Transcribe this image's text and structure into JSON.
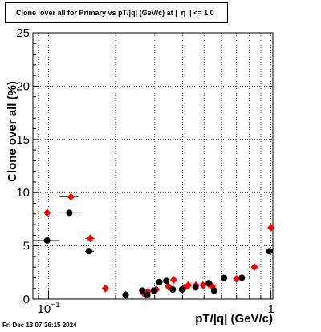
{
  "title": "Clone  over all for Primary vs pT/|q| (GeV/c) at |  η  | <= 1.0",
  "footer": "Fri Dec 13 07:36:15 2024",
  "chart_data": {
    "type": "scatter",
    "title": "Clone  over all for Primary vs pT/|q| (GeV/c) at |  η  | <= 1.0",
    "xlabel": "pT/|q| (GeV/c)",
    "ylabel": "Clone  over all (%)",
    "x_scale": "log",
    "xlim": [
      0.085,
      1.02
    ],
    "ylim": [
      0,
      25
    ],
    "y_ticks": [
      0,
      5,
      10,
      15,
      20,
      25
    ],
    "x_tick_labels": [
      "10^-1",
      "1"
    ],
    "grid": true,
    "series": [
      {
        "color": "#ff0000",
        "marker": "diamond",
        "points": [
          {
            "x": 0.0985,
            "y": 8.1,
            "xerr": [
              0.085,
              0.106
            ]
          },
          {
            "x": 0.126,
            "y": 9.6,
            "xerr": [
              0.112,
              0.136
            ]
          },
          {
            "x": 0.154,
            "y": 5.7,
            "xerr": [
              0.146,
              0.162
            ]
          },
          {
            "x": 0.18,
            "y": 1.0
          },
          {
            "x": 0.222,
            "y": 0.4
          },
          {
            "x": 0.266,
            "y": 0.6
          },
          {
            "x": 0.28,
            "y": 0.7
          },
          {
            "x": 0.305,
            "y": 0.9
          },
          {
            "x": 0.345,
            "y": 1.2
          },
          {
            "x": 0.365,
            "y": 1.8
          },
          {
            "x": 0.41,
            "y": 1.1
          },
          {
            "x": 0.425,
            "y": 1.3
          },
          {
            "x": 0.46,
            "y": 1.3
          },
          {
            "x": 0.495,
            "y": 1.3
          },
          {
            "x": 0.525,
            "y": 1.4
          },
          {
            "x": 0.545,
            "y": 1.2
          },
          {
            "x": 0.7,
            "y": 1.9
          },
          {
            "x": 0.842,
            "y": 3.0
          },
          {
            "x": 1.0,
            "y": 6.7
          }
        ]
      },
      {
        "color": "#000000",
        "marker": "circle",
        "points": [
          {
            "x": 0.0985,
            "y": 5.5,
            "xerr": [
              0.085,
              0.112
            ]
          },
          {
            "x": 0.124,
            "y": 8.1,
            "xerr": [
              0.11,
              0.14
            ]
          },
          {
            "x": 0.152,
            "y": 4.5,
            "xerr": [
              0.146,
              0.16
            ]
          },
          {
            "x": 0.222,
            "y": 0.4
          },
          {
            "x": 0.264,
            "y": 0.8
          },
          {
            "x": 0.278,
            "y": 0.4
          },
          {
            "x": 0.298,
            "y": 0.8
          },
          {
            "x": 0.315,
            "y": 1.6
          },
          {
            "x": 0.338,
            "y": 1.7
          },
          {
            "x": 0.362,
            "y": 0.9
          },
          {
            "x": 0.398,
            "y": 0.9
          },
          {
            "x": 0.458,
            "y": 1.1
          },
          {
            "x": 0.525,
            "y": 1.5
          },
          {
            "x": 0.555,
            "y": 0.8
          },
          {
            "x": 0.615,
            "y": 2.0
          },
          {
            "x": 0.74,
            "y": 2.0
          },
          {
            "x": 0.985,
            "y": 4.5
          }
        ]
      }
    ]
  }
}
